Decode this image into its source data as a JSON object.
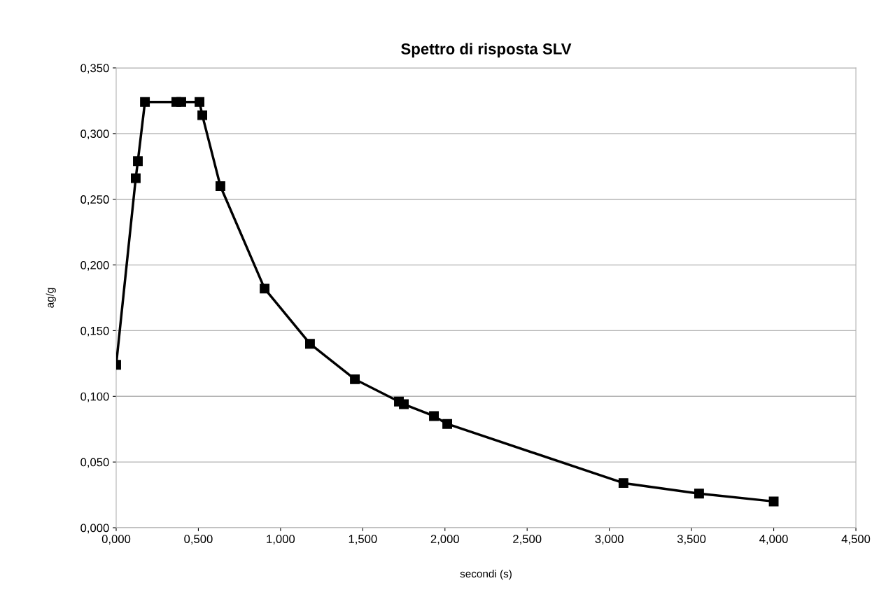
{
  "chart_data": {
    "type": "line",
    "title": "Spettro di risposta SLV",
    "xlabel": "secondi (s)",
    "ylabel": "ag/g",
    "x": [
      0,
      0.119,
      0.132,
      0.175,
      0.366,
      0.396,
      0.507,
      0.524,
      0.634,
      0.903,
      1.179,
      1.452,
      1.72,
      1.75,
      1.933,
      2.014,
      3.086,
      3.546,
      4.0
    ],
    "series": [
      {
        "color": "#000000",
        "values": [
          0.124,
          0.266,
          0.279,
          0.324,
          0.324,
          0.324,
          0.324,
          0.314,
          0.26,
          0.182,
          0.14,
          0.113,
          0.096,
          0.094,
          0.085,
          0.079,
          0.034,
          0.026,
          0.02
        ]
      }
    ],
    "xlim": [
      0,
      4.5
    ],
    "xticks": [
      {
        "value": 0,
        "label": "0,000"
      },
      {
        "value": 0.5,
        "label": "0,500"
      },
      {
        "value": 1,
        "label": "1,000"
      },
      {
        "value": 1.5,
        "label": "1,500"
      },
      {
        "value": 2,
        "label": "2,000"
      },
      {
        "value": 2.5,
        "label": "2,500"
      },
      {
        "value": 3,
        "label": "3,000"
      },
      {
        "value": 3.5,
        "label": "3,500"
      },
      {
        "value": 4,
        "label": "4,000"
      },
      {
        "value": 4.5,
        "label": "4,500"
      }
    ],
    "ylim": [
      0,
      0.35
    ],
    "yticks": [
      {
        "value": 0,
        "label": "0,000"
      },
      {
        "value": 0.05,
        "label": "0,050"
      },
      {
        "value": 0.1,
        "label": "0,100"
      },
      {
        "value": 0.15,
        "label": "0,150"
      },
      {
        "value": 0.2,
        "label": "0,200"
      },
      {
        "value": 0.25,
        "label": "0,250"
      },
      {
        "value": 0.3,
        "label": "0,300"
      },
      {
        "value": 0.35,
        "label": "0,350"
      }
    ],
    "grid": "y",
    "marker": "square",
    "line_style": "solid",
    "legend": false
  }
}
